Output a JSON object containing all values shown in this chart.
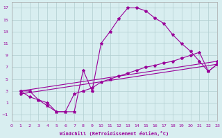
{
  "xlabel": "Windchill (Refroidissement éolien,°C)",
  "bg_color": "#d8eef0",
  "grid_color": "#b0cdd0",
  "line_color": "#990099",
  "xlim": [
    0,
    23
  ],
  "ylim": [
    -2,
    18
  ],
  "xticks": [
    0,
    1,
    2,
    3,
    4,
    5,
    6,
    7,
    8,
    9,
    10,
    11,
    12,
    13,
    14,
    15,
    16,
    17,
    18,
    19,
    20,
    21,
    22,
    23
  ],
  "yticks": [
    -1,
    1,
    3,
    5,
    7,
    9,
    11,
    13,
    15,
    17
  ],
  "curve1_x": [
    1,
    2,
    3,
    4,
    5,
    6,
    7,
    8,
    9,
    10,
    11,
    12,
    13,
    14,
    15,
    16,
    17,
    18,
    19,
    20,
    21,
    22,
    23
  ],
  "curve1_y": [
    3.0,
    3.0,
    1.5,
    1.0,
    -0.5,
    -0.5,
    -0.5,
    6.5,
    3.0,
    11.0,
    13.0,
    15.2,
    17.0,
    17.0,
    16.5,
    15.3,
    14.4,
    12.5,
    11.0,
    9.7,
    8.0,
    6.3,
    7.5
  ],
  "line2_x": [
    1,
    23
  ],
  "line2_y": [
    3.0,
    8.0
  ],
  "line3_x": [
    1,
    23
  ],
  "line3_y": [
    2.5,
    7.5
  ],
  "curve4_x": [
    1,
    2,
    3,
    4,
    5,
    6,
    7,
    8,
    9,
    10,
    11,
    12,
    13,
    14,
    15,
    16,
    17,
    18,
    19,
    20,
    21,
    22,
    23
  ],
  "curve4_y": [
    3.0,
    2.0,
    1.5,
    0.5,
    -0.5,
    -0.5,
    2.5,
    3.0,
    3.5,
    4.5,
    5.0,
    5.5,
    6.0,
    6.5,
    7.0,
    7.3,
    7.7,
    8.0,
    8.5,
    9.0,
    9.5,
    6.3,
    7.5
  ]
}
